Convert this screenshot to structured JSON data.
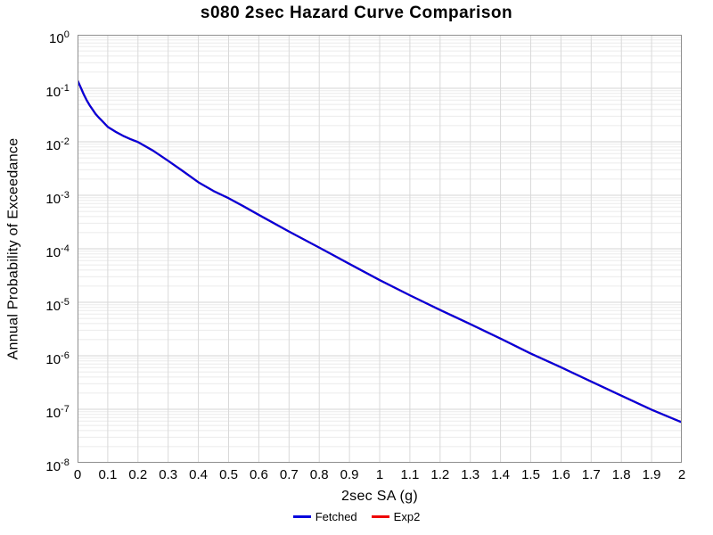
{
  "chart_data": {
    "type": "line",
    "title": "s080 2sec Hazard Curve Comparison",
    "xlabel": "2sec SA (g)",
    "ylabel": "Annual Probability of Exceedance",
    "x_axis": {
      "min": 0,
      "max": 2,
      "tick_labels": [
        "0",
        "0.1",
        "0.2",
        "0.3",
        "0.4",
        "0.5",
        "0.6",
        "0.7",
        "0.8",
        "0.9",
        "1",
        "1.1",
        "1.2",
        "1.3",
        "1.4",
        "1.5",
        "1.6",
        "1.7",
        "1.8",
        "1.9",
        "2"
      ]
    },
    "y_axis": {
      "scale": "log",
      "min": 1e-08,
      "max": 1,
      "tick_exponents": [
        0,
        -1,
        -2,
        -3,
        -4,
        -5,
        -6,
        -7,
        -8
      ]
    },
    "grid": {
      "show_minor_log_lines": true,
      "major_color": "#d4d4d4",
      "minor_color": "#ebebeb",
      "vertical_color": "#d9d9d9",
      "border_color": "#8f8f8f"
    },
    "legend_position": "bottom",
    "series": [
      {
        "name": "Fetched",
        "color": "#0000dd",
        "points": [
          [
            0,
            0.14
          ],
          [
            0.01,
            0.105
          ],
          [
            0.02,
            0.078
          ],
          [
            0.03,
            0.06
          ],
          [
            0.04,
            0.048
          ],
          [
            0.05,
            0.04
          ],
          [
            0.06,
            0.033
          ],
          [
            0.07,
            0.0285
          ],
          [
            0.08,
            0.025
          ],
          [
            0.1,
            0.019
          ],
          [
            0.125,
            0.0155
          ],
          [
            0.15,
            0.013
          ],
          [
            0.175,
            0.0112
          ],
          [
            0.2,
            0.0099
          ],
          [
            0.25,
            0.0068
          ],
          [
            0.3,
            0.0044
          ],
          [
            0.35,
            0.0028
          ],
          [
            0.4,
            0.00175
          ],
          [
            0.45,
            0.0012
          ],
          [
            0.5,
            0.00088
          ],
          [
            0.55,
            0.00062
          ],
          [
            0.6,
            0.00043
          ],
          [
            0.7,
            0.00021
          ],
          [
            0.8,
            0.000105
          ],
          [
            0.9,
            5.2e-05
          ],
          [
            1.0,
            2.6e-05
          ],
          [
            1.1,
            1.35e-05
          ],
          [
            1.2,
            7.2e-06
          ],
          [
            1.3,
            3.9e-06
          ],
          [
            1.4,
            2.1e-06
          ],
          [
            1.5,
            1.1e-06
          ],
          [
            1.6,
            6.1e-07
          ],
          [
            1.7,
            3.3e-07
          ],
          [
            1.8,
            1.8e-07
          ],
          [
            1.9,
            9.8e-08
          ],
          [
            2.0,
            5.7e-08
          ]
        ]
      },
      {
        "name": "Exp2",
        "color": "#ee0000",
        "points": [
          [
            0,
            0.14
          ],
          [
            0.01,
            0.105
          ],
          [
            0.02,
            0.078
          ],
          [
            0.03,
            0.06
          ],
          [
            0.04,
            0.048
          ],
          [
            0.05,
            0.04
          ],
          [
            0.06,
            0.033
          ],
          [
            0.07,
            0.0285
          ],
          [
            0.08,
            0.025
          ],
          [
            0.1,
            0.019
          ],
          [
            0.125,
            0.0155
          ],
          [
            0.15,
            0.013
          ],
          [
            0.175,
            0.0112
          ],
          [
            0.2,
            0.0099
          ],
          [
            0.25,
            0.0068
          ],
          [
            0.3,
            0.0044
          ],
          [
            0.35,
            0.0028
          ],
          [
            0.4,
            0.00175
          ],
          [
            0.45,
            0.0012
          ],
          [
            0.5,
            0.00088
          ],
          [
            0.55,
            0.00062
          ],
          [
            0.6,
            0.00043
          ],
          [
            0.7,
            0.00021
          ],
          [
            0.8,
            0.000105
          ],
          [
            0.9,
            5.2e-05
          ],
          [
            1.0,
            2.6e-05
          ],
          [
            1.1,
            1.35e-05
          ],
          [
            1.2,
            7.2e-06
          ],
          [
            1.3,
            3.9e-06
          ],
          [
            1.4,
            2.1e-06
          ],
          [
            1.5,
            1.1e-06
          ],
          [
            1.6,
            6.1e-07
          ],
          [
            1.7,
            3.3e-07
          ],
          [
            1.8,
            1.8e-07
          ],
          [
            1.9,
            9.8e-08
          ],
          [
            2.0,
            5.7e-08
          ]
        ]
      }
    ]
  }
}
